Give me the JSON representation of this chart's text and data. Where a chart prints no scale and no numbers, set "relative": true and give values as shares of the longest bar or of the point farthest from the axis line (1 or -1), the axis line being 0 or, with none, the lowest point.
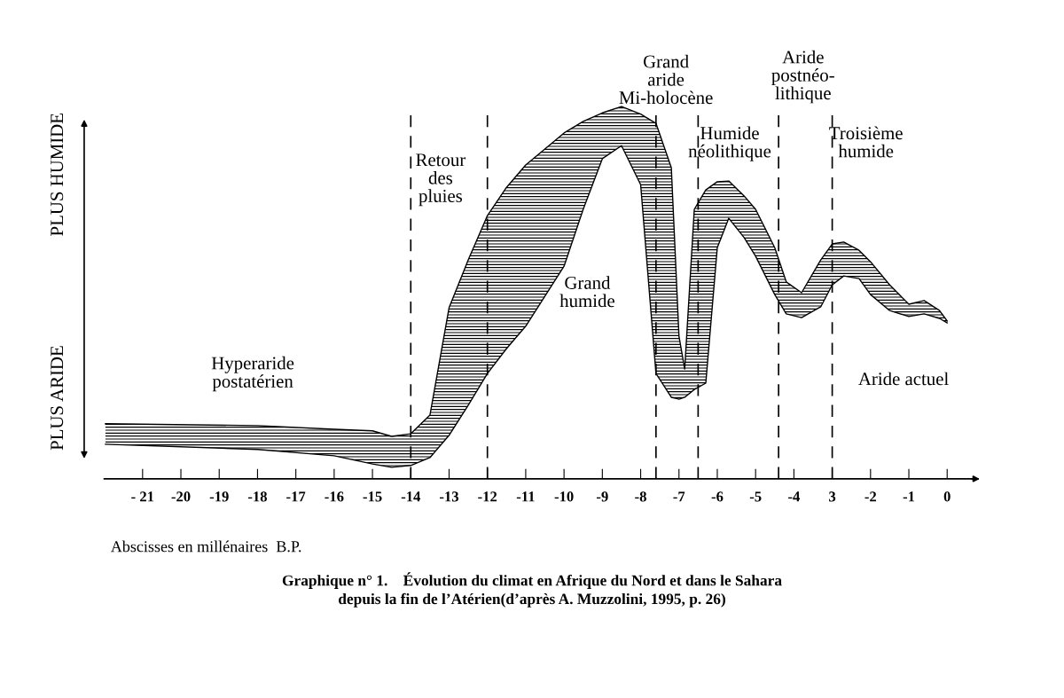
{
  "chart_data": {
    "type": "area",
    "relative": true,
    "title": "Graphique n° 1.    Évolution du climat en Afrique du Nord et dans le Sahara\ndepuis la fin de l’Atérien(d’après A. Muzzolini, 1995, p. 26)",
    "xlabel": "Abscisses en millénaires  B.P.",
    "ylabel": "PLUS ARIDE",
    "y2label": "PLUS HUMIDE",
    "x": [
      -21.97,
      -18,
      -16,
      -15,
      -14.5,
      -14,
      -13.5,
      -13,
      -12.5,
      -12,
      -11.5,
      -11,
      -10,
      -9.5,
      -9,
      -8.5,
      -8,
      -7.6,
      -7.2,
      -7,
      -6.85,
      -6.6,
      -6.3,
      -6,
      -5.7,
      -5.3,
      -5,
      -4.5,
      -4.2,
      -3.8,
      -3.3,
      -3,
      -2.7,
      -2.3,
      -2,
      -1.5,
      -1,
      -0.6,
      -0.2,
      0
    ],
    "series": [
      {
        "color": "#000000",
        "values": [
          0.148,
          0.143,
          0.133,
          0.129,
          0.114,
          0.121,
          0.171,
          0.46,
          0.588,
          0.707,
          0.783,
          0.843,
          0.929,
          0.96,
          0.983,
          1,
          0.98,
          0.955,
          0.836,
          0.383,
          0.295,
          0.724,
          0.776,
          0.798,
          0.8,
          0.76,
          0.724,
          0.621,
          0.529,
          0.5,
          0.588,
          0.631,
          0.636,
          0.614,
          0.583,
          0.521,
          0.469,
          0.479,
          0.452,
          0.424
        ]
      },
      {
        "type": "line",
        "color": "#000000",
        "values": [
          0.093,
          0.079,
          0.062,
          0.04,
          0.031,
          0.036,
          0.057,
          0.117,
          0.198,
          0.283,
          0.35,
          0.41,
          0.571,
          0.724,
          0.86,
          0.895,
          0.79,
          0.283,
          0.219,
          0.214,
          0.219,
          0.24,
          0.257,
          0.621,
          0.7,
          0.648,
          0.598,
          0.495,
          0.443,
          0.433,
          0.462,
          0.521,
          0.545,
          0.538,
          0.495,
          0.452,
          0.436,
          0.443,
          0.431,
          0.419
        ]
      }
    ],
    "xlim": [
      -22,
      0.8
    ],
    "xticks": [
      {
        "value": -21,
        "label": "- 21"
      },
      -20,
      -19,
      -18,
      -17,
      -16,
      -15,
      -14,
      -13,
      -12,
      -11,
      -10,
      -9,
      -8,
      -7,
      -6,
      -5,
      -4,
      {
        "value": -3,
        "label": "3"
      },
      -2,
      -1,
      0
    ],
    "ref_lines": [
      {
        "axis": "x",
        "value": -14,
        "line_style": "dashed"
      },
      {
        "axis": "x",
        "value": -12,
        "line_style": "dashed"
      },
      {
        "axis": "x",
        "value": -7.6,
        "line_style": "dashed"
      },
      {
        "axis": "x",
        "value": -6.5,
        "line_style": "dashed"
      },
      {
        "axis": "x",
        "value": -4.4,
        "line_style": "dashed"
      },
      {
        "axis": "x",
        "value": -3,
        "line_style": "dashed"
      }
    ],
    "annotations": [
      "Hyperaride\npostatérien",
      "Retour\ndes\npluies",
      "Grand\nhumide",
      "Grand\naride\nMi-holocène",
      "Humide\nnéolithique",
      "Aride\npostnéo-\nlithique",
      "Troisième\nhumide",
      "Aride actuel"
    ]
  }
}
